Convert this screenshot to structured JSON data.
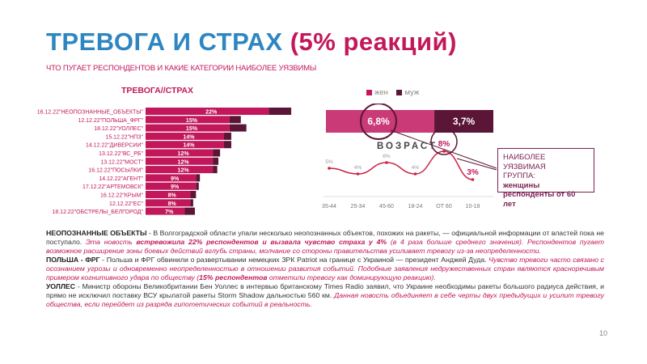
{
  "header": {
    "title_part1": "ТРЕВОГА И СТРАХ",
    "title_part2": "(5% реакций)",
    "subtitle": "ЧТО ПУГАЕТ РЕСПОНДЕНТОВ И КАКИЕ КАТЕГОРИИ НАИБОЛЕЕ УЯЗВИМЫ"
  },
  "colors": {
    "pink": "#c2185b",
    "dark": "#5b1536",
    "blue": "#2e86c1",
    "pink_soft": "#c93a76",
    "line": "#cc2244"
  },
  "chart_data": [
    {
      "type": "bar",
      "title": "ТРЕВОГА//СТРАХ",
      "categories": [
        "16.12.22\"НЕОПОЗНАННЫЕ_ОБЪЕКТЫ\"",
        "12.12.22\"ПОЛЬША_ФРГ\"",
        "18.12.22\"УОЛЛЕС\"",
        "15.12.22\"НПЗ\"",
        "14.12.22\"ДИВЕРСИИ\"",
        "13.12.22\"ВС_РБ\"",
        "13.12.22\"МОСТ\"",
        "16.12.22\"ПОСЫЛКИ\"",
        "14.12.22\"АГЕНТ\"",
        "17.12.22\"АРТЕМОВСК\"",
        "16.12.22\"КРЫМ\"",
        "12.12.22\"ЕС\"",
        "18.12.22\"ОБСТРЕЛЫ_БЕЛГОРОД\""
      ],
      "series": [
        {
          "name": "",
          "values": [
            22,
            15,
            15,
            14,
            14,
            12,
            12,
            12,
            9,
            9,
            8,
            8,
            7
          ]
        },
        {
          "name": "",
          "values": [
            4,
            2,
            3,
            1.3,
            1.3,
            1.3,
            1,
            0.8,
            0.7,
            0.5,
            1,
            0.5,
            1.8
          ]
        }
      ],
      "value_labels": [
        "22%",
        "15%",
        "15%",
        "14%",
        "14%",
        "12%",
        "12%",
        "12%",
        "9%",
        "9%",
        "8%",
        "8%",
        "7%"
      ],
      "xlim": [
        0,
        27
      ]
    },
    {
      "type": "bar",
      "legend": [
        "жен",
        "муж"
      ],
      "legend_placement": "top",
      "values": [
        6.8,
        3.7
      ],
      "labels": [
        "6,8%",
        "3,7%"
      ]
    },
    {
      "type": "line",
      "title": "ВОЗРАСТ",
      "categories": [
        "35-44",
        "25-34",
        "45-60",
        "18-24",
        "ОТ 60",
        "10-18"
      ],
      "values": [
        5,
        4,
        6,
        4,
        8,
        3
      ],
      "labels": [
        "5%",
        "4%",
        "6%",
        "4%",
        "8%",
        "3%"
      ],
      "highlighted": [
        "8%",
        "3%"
      ],
      "ylim": [
        0,
        10
      ]
    }
  ],
  "callout": {
    "line1": "НАИБОЛЕЕ УЯЗВИМАЯ",
    "line2": "ГРУППА:",
    "line3": "женщины",
    "line4": "респонденты от 60 лет"
  },
  "paragraph": {
    "p1_head": "НЕОПОЗНАННЫЕ ОБЪЕКТЫ",
    "p1_a": " - В Волгоградской области упали несколько неопознанных объектов, похожих на ракеты, — официальной информации от властей пока не поступало. ",
    "p1_b": "Эта новость ",
    "p1_c": "встревожила 22% респондентов и вызвала чувство страха у 4%",
    "p1_d": " (в 4 раза больше среднего значения). Респондентов пугает возможное расширение зоны боевых действий вглубь страны, молчание со стороны правительства усиливает тревогу из-за неопределенности.",
    "p2_head": "ПОЛЬША - ФРГ",
    "p2_a": " - Польша и ФРГ обвинили о развертывании немецких ЗРК Patriot на границе с Украиной — президент Анджей Дуда. ",
    "p2_b": "Чувство тревоги часто связано с осознанием угрозы и одновременно неопределенностью в отношении развития событий. Подобные заявления недружественных стран являются красноречивым примером когнитивного удара по обществу (",
    "p2_c": "15% респондентов",
    "p2_d": " отметили тревогу как доминирующую реакцию).",
    "p3_head": "УОЛЛЕС",
    "p3_a": " - Министр обороны Великобритании Бен Уоллес в интервью британскому Times Radio заявил, что Украине необходимы ракеты большого радиуса действия, и прямо не исключил поставку ВСУ крылатой ракеты Storm Shadow дальностью 560 км. ",
    "p3_b": "Данная новость объединяет в себе черты двух предыдущих и усилит тревогу общества, если перейдет из разряда гипотетических событий в реальность."
  },
  "page_number": "10"
}
